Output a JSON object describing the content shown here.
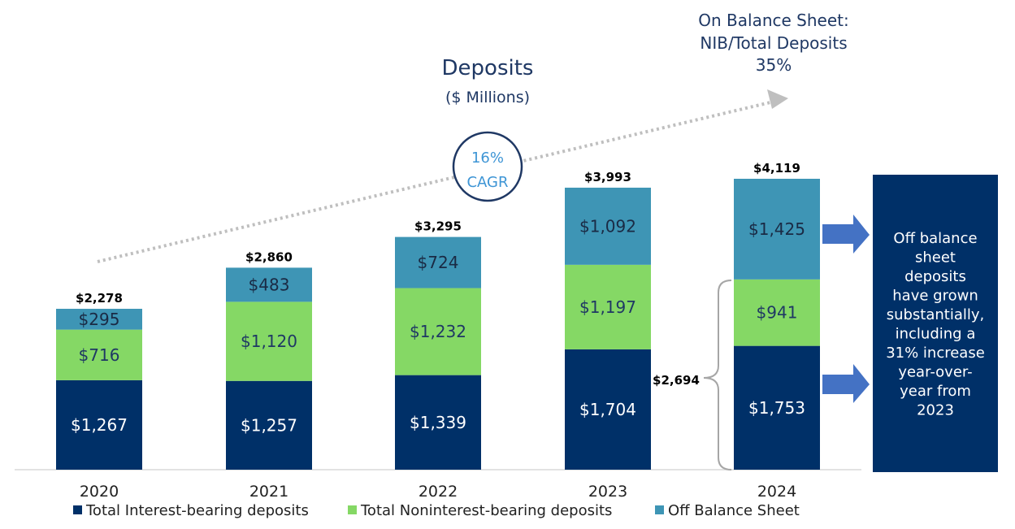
{
  "chart_data": {
    "type": "bar",
    "stacked": true,
    "title": "Deposits",
    "subtitle": "($ Millions)",
    "categories": [
      "2020",
      "2021",
      "2022",
      "2023",
      "2024"
    ],
    "series": [
      {
        "name": "Total Interest-bearing deposits",
        "color": "#003068",
        "values": [
          1267,
          1257,
          1339,
          1704,
          1753
        ],
        "labels": [
          "$1,267",
          "$1,257",
          "$1,339",
          "$1,704",
          "$1,753"
        ]
      },
      {
        "name": "Total Noninterest-bearing deposits",
        "color": "#85d865",
        "values": [
          716,
          1120,
          1232,
          1197,
          941
        ],
        "labels": [
          "$716",
          "$1,120",
          "$1,232",
          "$1,197",
          "$941"
        ]
      },
      {
        "name": "Off Balance Sheet",
        "color": "#3e95b5",
        "values": [
          295,
          483,
          724,
          1092,
          1425
        ],
        "labels": [
          "$295",
          "$483",
          "$724",
          "$1,092",
          "$1,425"
        ]
      }
    ],
    "totals": [
      "$2,278",
      "$2,860",
      "$3,295",
      "$3,993",
      "$4,119"
    ],
    "ylim": [
      0,
      4119
    ],
    "grid": false,
    "legend_position": "bottom",
    "annotations": {
      "cagr_value": "16%",
      "cagr_label": "CAGR",
      "on_balance_lines": [
        "On Balance Sheet:",
        "NIB/Total Deposits",
        "35%"
      ],
      "on_balance_total_2024": "$2,694",
      "callout_lines": [
        "Off balance",
        "sheet",
        "deposits",
        "have grown",
        "substantially,",
        "including a",
        "31% increase",
        "year-over-",
        "year from",
        "2023"
      ]
    }
  }
}
